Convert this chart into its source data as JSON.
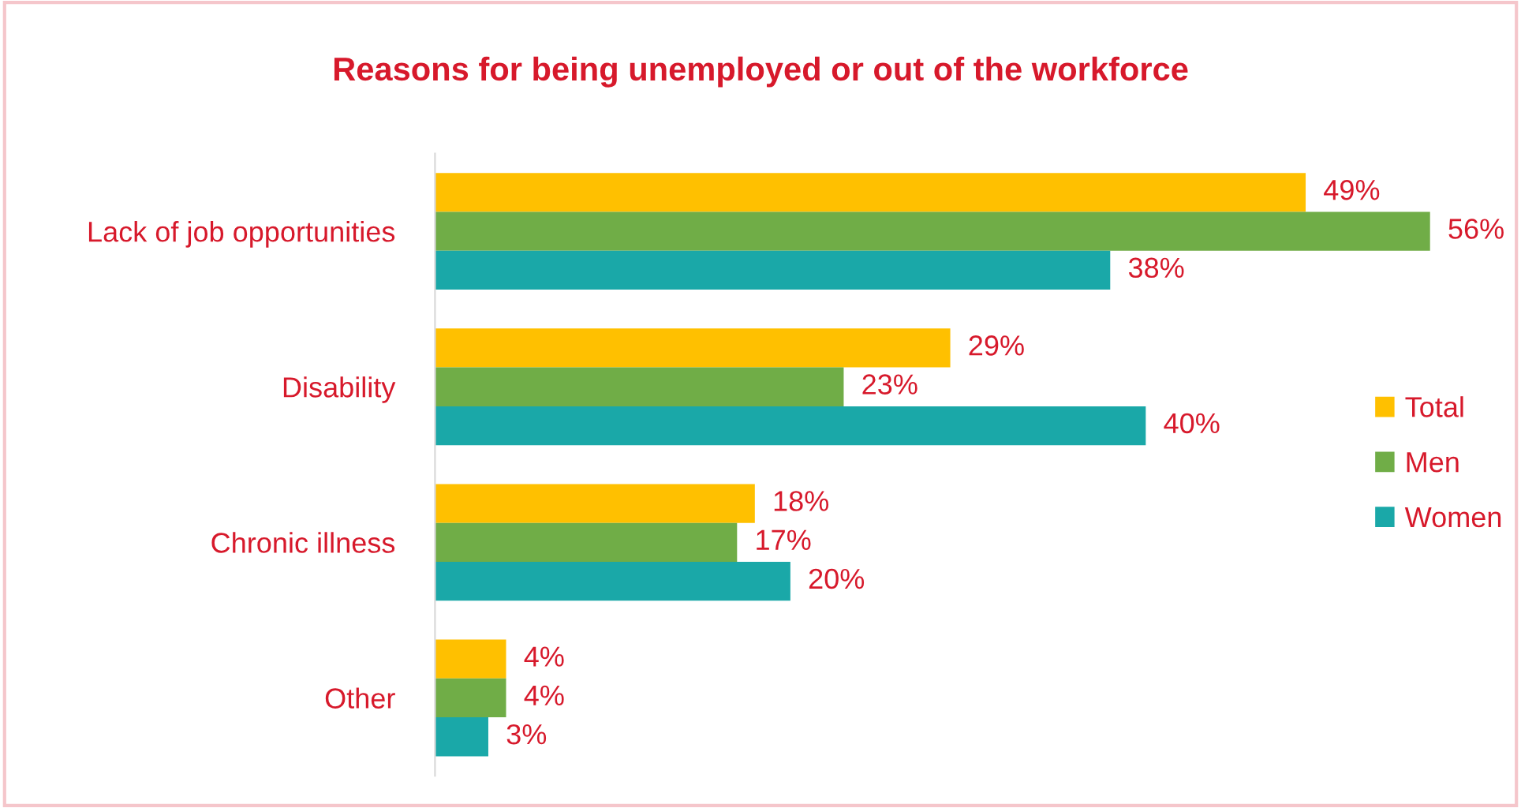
{
  "chart_data": {
    "type": "bar",
    "orientation": "horizontal",
    "title": "Reasons for being unemployed or out of the workforce",
    "categories": [
      "Lack of job opportunities",
      "Disability",
      "Chronic illness",
      "Other"
    ],
    "series": [
      {
        "name": "Total",
        "color": "#ffc000",
        "values": [
          49,
          29,
          18,
          4
        ],
        "value_labels": [
          "49%",
          "29%",
          "18%",
          "4%"
        ]
      },
      {
        "name": "Men",
        "color": "#70ad47",
        "values": [
          56,
          23,
          17,
          4
        ],
        "value_labels": [
          "56%",
          "23%",
          "17%",
          "4%"
        ]
      },
      {
        "name": "Women",
        "color": "#1aa8a8",
        "values": [
          38,
          40,
          20,
          3
        ],
        "value_labels": [
          "38%",
          "40%",
          "20%",
          "3%"
        ]
      }
    ],
    "legend": "right",
    "grid": false
  }
}
